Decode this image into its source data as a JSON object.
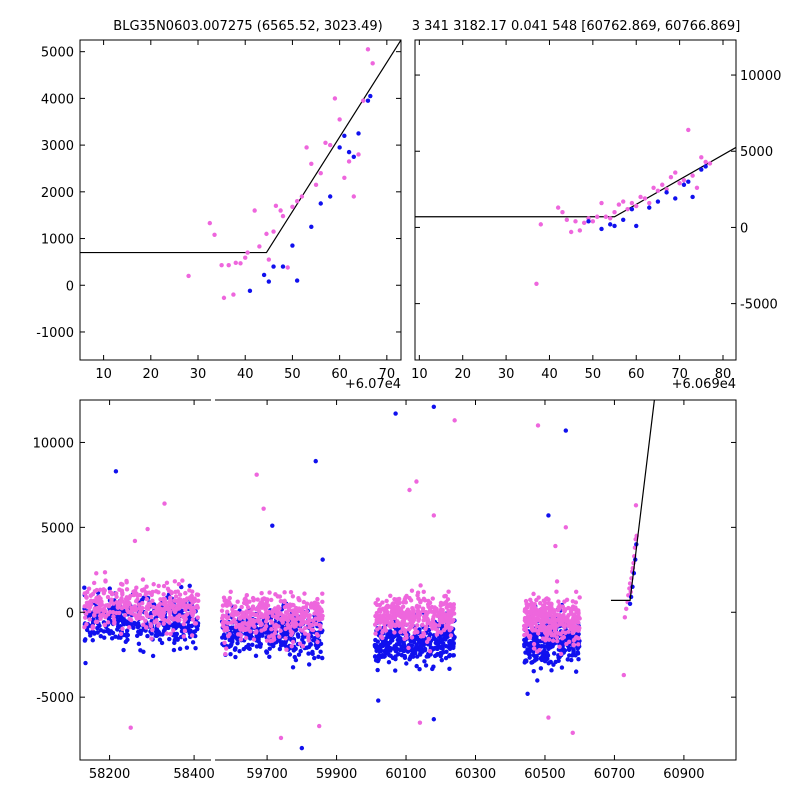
{
  "colors": {
    "blue": "#1010ee",
    "magenta": "#ee66dd",
    "line": "#000000",
    "frame": "#000000",
    "background": "#ffffff"
  },
  "chart_data": [
    {
      "type": "scatter",
      "id": "panel-top-left",
      "title": "BLG35N0603.007275 (6565.52, 3023.49)",
      "x_offset_label": "+6.07e4",
      "x_offset_value": 60700,
      "xlim": [
        5,
        73
      ],
      "ylim": [
        -1600,
        5250
      ],
      "xticks": [
        10,
        20,
        30,
        40,
        50,
        60,
        70
      ],
      "yticks": [
        -1000,
        0,
        1000,
        2000,
        3000,
        4000,
        5000
      ],
      "ytick_side": "left",
      "series": [
        {
          "color": "magenta",
          "x": [
            28,
            32.5,
            33.5,
            35,
            35.5,
            36.5,
            37.5,
            38,
            39,
            40,
            40.5,
            42,
            43,
            44.5,
            45,
            46,
            46.5,
            47.5,
            48,
            49,
            50,
            51,
            52,
            53,
            54,
            55,
            56,
            57,
            58,
            59,
            60,
            61,
            62,
            63,
            64,
            65,
            66,
            67
          ],
          "y": [
            200,
            1330,
            1080,
            430,
            -270,
            430,
            -200,
            480,
            470,
            590,
            700,
            1600,
            830,
            1100,
            550,
            1150,
            1700,
            1600,
            1480,
            380,
            1680,
            1800,
            1900,
            2950,
            2600,
            2150,
            2400,
            3050,
            3000,
            4000,
            3550,
            2300,
            2650,
            1900,
            2800,
            3950,
            5050,
            4750
          ]
        },
        {
          "color": "blue",
          "x": [
            41,
            44,
            45,
            46,
            48,
            50,
            51,
            54,
            56,
            58,
            60,
            61,
            62,
            63,
            64,
            66,
            66.5
          ],
          "y": [
            -120,
            220,
            80,
            400,
            400,
            850,
            100,
            1250,
            1750,
            1900,
            2950,
            3200,
            2850,
            2750,
            3250,
            3950,
            4050
          ]
        }
      ],
      "model_line": {
        "x": [
          5,
          44.5,
          73
        ],
        "y": [
          700,
          700,
          5250
        ]
      }
    },
    {
      "type": "scatter",
      "id": "panel-top-right",
      "title": "3 341 3182.17 0.041 548 [60762.869, 60766.869]",
      "x_offset_label": "+6.069e4",
      "x_offset_value": 60690,
      "xlim": [
        9,
        83
      ],
      "ylim": [
        -8700,
        12300
      ],
      "xticks": [
        10,
        20,
        30,
        40,
        50,
        60,
        70,
        80
      ],
      "yticks": [
        -5000,
        0,
        5000,
        10000
      ],
      "ytick_side": "right",
      "series": [
        {
          "color": "magenta",
          "x": [
            37,
            38,
            42,
            43,
            44,
            45,
            46,
            47,
            48,
            49,
            50,
            51,
            52,
            53,
            54,
            55,
            56,
            57,
            58,
            59,
            60,
            61,
            62,
            63,
            64,
            65,
            66,
            67,
            68,
            69,
            70,
            71,
            72,
            73,
            74,
            75,
            76,
            77
          ],
          "y": [
            -3700,
            200,
            1300,
            1000,
            500,
            -300,
            400,
            -200,
            300,
            600,
            400,
            700,
            1600,
            700,
            600,
            1000,
            1500,
            1700,
            1200,
            1600,
            1400,
            2000,
            1900,
            1600,
            2600,
            2400,
            2800,
            2500,
            3300,
            3600,
            2900,
            3100,
            6400,
            3400,
            2600,
            4600,
            4300,
            4200
          ]
        },
        {
          "color": "blue",
          "x": [
            49,
            52,
            54,
            55,
            57,
            59,
            60,
            63,
            65,
            67,
            69,
            71,
            72,
            73,
            75,
            76
          ],
          "y": [
            400,
            -100,
            200,
            100,
            500,
            1200,
            100,
            1300,
            1700,
            2300,
            1900,
            2800,
            3000,
            2000,
            3800,
            4000
          ]
        }
      ],
      "model_line": {
        "x": [
          9,
          55,
          83
        ],
        "y": [
          700,
          700,
          5250
        ]
      }
    },
    {
      "type": "scatter",
      "id": "panel-bottom",
      "xlim_left": [
        58130,
        58440
      ],
      "xlim_right": [
        59550,
        61050
      ],
      "ylim": [
        -8700,
        12500
      ],
      "xticks_left": [
        58200,
        58400
      ],
      "xticks_right": [
        59700,
        59900,
        60100,
        60300,
        60500,
        60700,
        60900
      ],
      "yticks": [
        -5000,
        0,
        5000,
        10000
      ],
      "ytick_side": "left",
      "seasons": [
        {
          "x0": 58140,
          "x1": 58410,
          "blue_mean": -500,
          "magenta_mean": 300,
          "n": 380,
          "scatter": 650
        },
        {
          "x0": 59570,
          "x1": 59860,
          "blue_mean": -1200,
          "magenta_mean": -300,
          "n": 380,
          "scatter": 650
        },
        {
          "x0": 60010,
          "x1": 60240,
          "blue_mean": -1800,
          "magenta_mean": -300,
          "n": 360,
          "scatter": 600
        },
        {
          "x0": 60440,
          "x1": 60600,
          "blue_mean": -1600,
          "magenta_mean": -500,
          "n": 330,
          "scatter": 650
        }
      ],
      "outliers": {
        "blue": [
          [
            58215,
            8300
          ],
          [
            59715,
            5100
          ],
          [
            59840,
            8900
          ],
          [
            59860,
            3100
          ],
          [
            59800,
            -8000
          ],
          [
            60070,
            11700
          ],
          [
            60180,
            12100
          ],
          [
            60510,
            5700
          ],
          [
            60560,
            10700
          ],
          [
            60020,
            -5200
          ],
          [
            60180,
            -6300
          ],
          [
            60450,
            -4800
          ]
        ],
        "magenta": [
          [
            58260,
            4200
          ],
          [
            58290,
            4900
          ],
          [
            58330,
            6400
          ],
          [
            58250,
            -6800
          ],
          [
            59670,
            8100
          ],
          [
            59690,
            6100
          ],
          [
            59800,
            -8800
          ],
          [
            59740,
            -7400
          ],
          [
            60130,
            7700
          ],
          [
            60110,
            7200
          ],
          [
            60180,
            5700
          ],
          [
            60240,
            11300
          ],
          [
            60480,
            11000
          ],
          [
            60530,
            3900
          ],
          [
            60560,
            5000
          ],
          [
            60580,
            -7100
          ],
          [
            60510,
            -6200
          ],
          [
            60140,
            -6500
          ],
          [
            59850,
            -6700
          ]
        ]
      },
      "event_points": {
        "magenta": [
          [
            60727,
            -3700
          ],
          [
            60730,
            -300
          ],
          [
            60734,
            200
          ],
          [
            60738,
            600
          ],
          [
            60740,
            1000
          ],
          [
            60743,
            1400
          ],
          [
            60745,
            1700
          ],
          [
            60747,
            1200
          ],
          [
            60749,
            2000
          ],
          [
            60751,
            2400
          ],
          [
            60753,
            2600
          ],
          [
            60755,
            2900
          ],
          [
            60757,
            3300
          ],
          [
            60759,
            3800
          ],
          [
            60761,
            4300
          ],
          [
            60762,
            6300
          ],
          [
            60764,
            4500
          ]
        ],
        "blue": [
          [
            60745,
            500
          ],
          [
            60748,
            900
          ],
          [
            60752,
            1500
          ],
          [
            60756,
            2300
          ],
          [
            60760,
            3100
          ],
          [
            60763,
            4000
          ]
        ]
      },
      "model_line": {
        "x": [
          60690,
          60745,
          60815
        ],
        "y": [
          700,
          700,
          12500
        ]
      }
    }
  ]
}
